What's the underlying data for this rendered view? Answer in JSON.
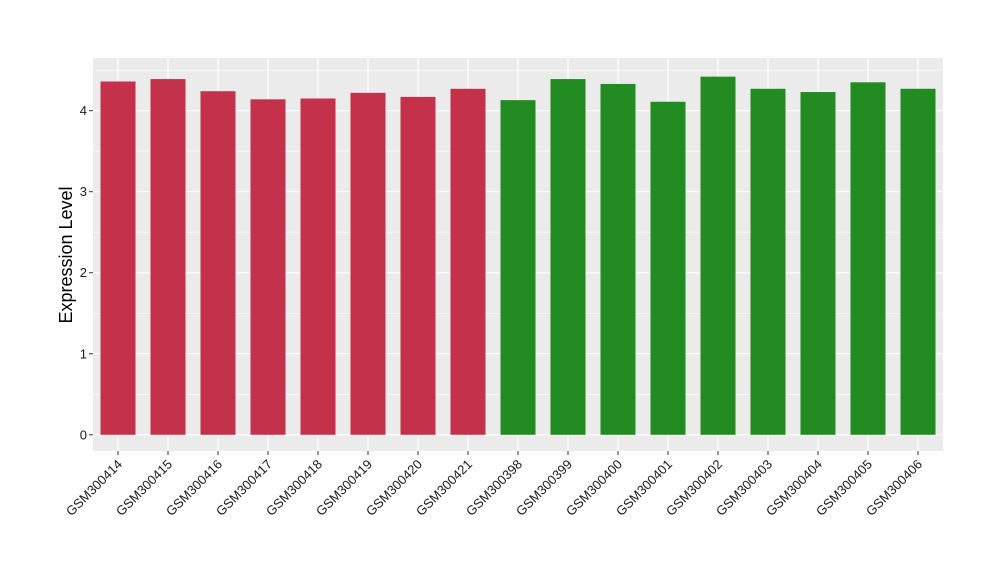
{
  "chart_data": {
    "type": "bar",
    "title": "",
    "xlabel": "",
    "ylabel": "Expression Level",
    "ylim": [
      -0.2,
      4.65
    ],
    "yticks": [
      0,
      1,
      2,
      3,
      4
    ],
    "grid": true,
    "legend": "none",
    "categories": [
      "GSM300414",
      "GSM300415",
      "GSM300416",
      "GSM300417",
      "GSM300418",
      "GSM300419",
      "GSM300420",
      "GSM300421",
      "GSM300398",
      "GSM300399",
      "GSM300400",
      "GSM300401",
      "GSM300402",
      "GSM300403",
      "GSM300404",
      "GSM300405",
      "GSM300406"
    ],
    "values": [
      4.36,
      4.39,
      4.24,
      4.14,
      4.15,
      4.22,
      4.17,
      4.27,
      4.13,
      4.39,
      4.33,
      4.11,
      4.42,
      4.27,
      4.23,
      4.35,
      4.27
    ],
    "groups": [
      "red",
      "red",
      "red",
      "red",
      "red",
      "red",
      "red",
      "red",
      "green",
      "green",
      "green",
      "green",
      "green",
      "green",
      "green",
      "green",
      "green"
    ],
    "colors": {
      "red": "#C3314A",
      "green": "#228B22",
      "panel": "#EBEBEB",
      "grid": "#FFFFFF"
    }
  }
}
